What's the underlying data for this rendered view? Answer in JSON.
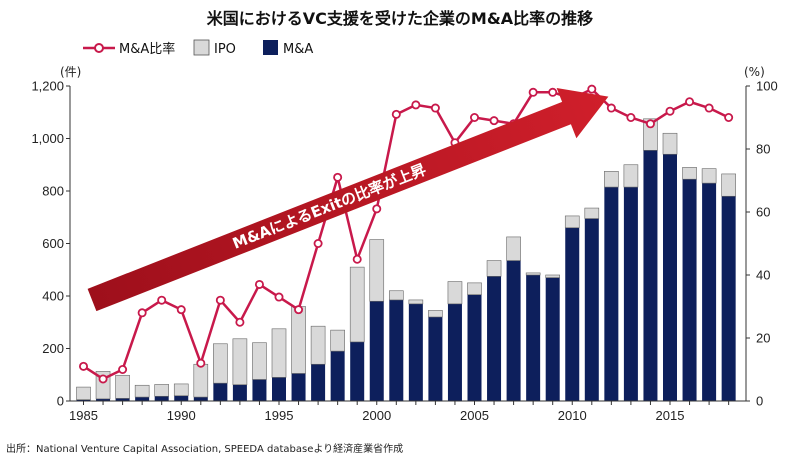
{
  "chart_data": {
    "type": "bar",
    "title": "米国におけるVC支援を受けた企業のM&A比率の推移",
    "left_unit": "(件)",
    "right_unit": "(%)",
    "ylim": [
      0,
      1200
    ],
    "y2lim": [
      0,
      100
    ],
    "y_ticks": [
      "0",
      "200",
      "400",
      "600",
      "800",
      "1,000",
      "1,200"
    ],
    "y2_ticks": [
      "0",
      "20",
      "40",
      "60",
      "80",
      "100"
    ],
    "x_tick_labels": [
      "1985",
      "1990",
      "1995",
      "2000",
      "2005",
      "2010",
      "2015"
    ],
    "x": [
      1985,
      1986,
      1987,
      1988,
      1989,
      1990,
      1991,
      1992,
      1993,
      1994,
      1995,
      1996,
      1997,
      1998,
      1999,
      2000,
      2001,
      2002,
      2003,
      2004,
      2005,
      2006,
      2007,
      2008,
      2009,
      2010,
      2011,
      2012,
      2013,
      2014,
      2015,
      2016,
      2017,
      2018
    ],
    "series": [
      {
        "name": "M&A",
        "kind": "bar",
        "color": "#0d1f5c",
        "values": [
          5,
          8,
          10,
          15,
          18,
          20,
          15,
          68,
          62,
          82,
          90,
          105,
          140,
          190,
          225,
          380,
          385,
          370,
          320,
          370,
          405,
          475,
          535,
          480,
          470,
          660,
          695,
          815,
          815,
          955,
          940,
          845,
          830,
          780
        ]
      },
      {
        "name": "IPO",
        "kind": "bar-stack",
        "color": "#d9d9d9",
        "values": [
          48,
          105,
          88,
          45,
          45,
          45,
          125,
          150,
          175,
          140,
          185,
          255,
          145,
          80,
          285,
          235,
          35,
          15,
          25,
          85,
          45,
          60,
          90,
          8,
          10,
          45,
          40,
          60,
          85,
          120,
          80,
          45,
          55,
          85
        ]
      },
      {
        "name": "M&A比率",
        "kind": "line",
        "axis": "right",
        "color": "#c8194b",
        "values": [
          11,
          7,
          10,
          28,
          32,
          29,
          12,
          32,
          25,
          37,
          33,
          29,
          50,
          71,
          45,
          61,
          91,
          94,
          93,
          82,
          90,
          89,
          88,
          98,
          98,
          96,
          99,
          93,
          90,
          88,
          92,
          95,
          93,
          90
        ]
      }
    ],
    "annotation": "M&AによるExitの比率が上昇",
    "source": "出所：National Venture Capital Association, SPEEDA databaseより経済産業省作成"
  }
}
